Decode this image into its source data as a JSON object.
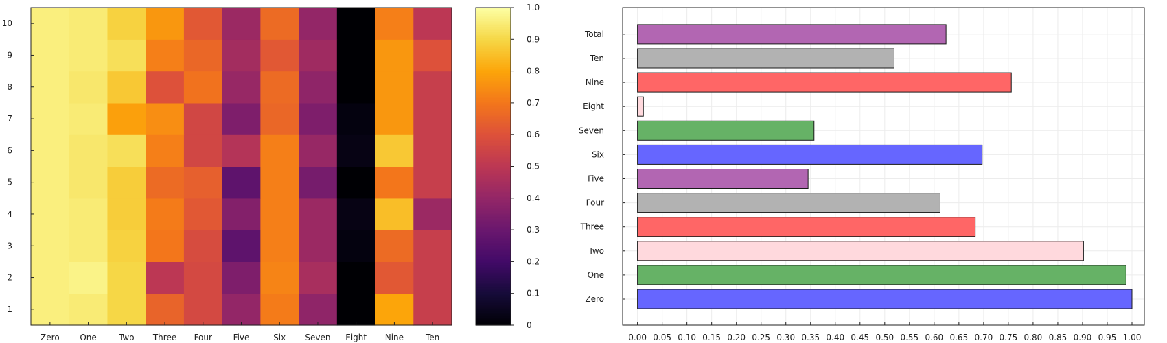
{
  "chart_data": [
    {
      "type": "heatmap",
      "title": "",
      "xlabel": "",
      "ylabel": "",
      "x_categories": [
        "Zero",
        "One",
        "Two",
        "Three",
        "Four",
        "Five",
        "Six",
        "Seven",
        "Eight",
        "Nine",
        "Ten"
      ],
      "y_categories": [
        "1",
        "2",
        "3",
        "4",
        "5",
        "6",
        "7",
        "8",
        "9",
        "10"
      ],
      "values": [
        [
          0.96,
          0.95,
          0.9,
          0.65,
          0.57,
          0.4,
          0.71,
          0.39,
          0.0,
          0.8,
          0.53
        ],
        [
          0.96,
          0.97,
          0.9,
          0.5,
          0.57,
          0.35,
          0.73,
          0.45,
          0.0,
          0.62,
          0.53
        ],
        [
          0.96,
          0.95,
          0.89,
          0.7,
          0.58,
          0.27,
          0.72,
          0.42,
          0.02,
          0.67,
          0.53
        ],
        [
          0.96,
          0.95,
          0.88,
          0.71,
          0.62,
          0.36,
          0.72,
          0.42,
          0.03,
          0.85,
          0.42
        ],
        [
          0.96,
          0.94,
          0.88,
          0.67,
          0.64,
          0.27,
          0.72,
          0.33,
          0.0,
          0.7,
          0.53
        ],
        [
          0.96,
          0.94,
          0.92,
          0.72,
          0.56,
          0.48,
          0.72,
          0.41,
          0.03,
          0.87,
          0.53
        ],
        [
          0.96,
          0.95,
          0.79,
          0.75,
          0.56,
          0.35,
          0.66,
          0.35,
          0.02,
          0.77,
          0.53
        ],
        [
          0.96,
          0.94,
          0.87,
          0.6,
          0.69,
          0.41,
          0.67,
          0.39,
          0.0,
          0.77,
          0.53
        ],
        [
          0.96,
          0.95,
          0.92,
          0.72,
          0.66,
          0.44,
          0.62,
          0.43,
          0.0,
          0.77,
          0.6
        ],
        [
          0.96,
          0.95,
          0.89,
          0.77,
          0.62,
          0.42,
          0.67,
          0.4,
          0.0,
          0.72,
          0.5
        ]
      ],
      "colorbar": {
        "colormap": "inferno",
        "range": [
          0,
          1
        ],
        "ticks": [
          "0",
          "0.1",
          "0.2",
          "0.3",
          "0.4",
          "0.5",
          "0.6",
          "0.7",
          "0.8",
          "0.9",
          "1.0"
        ]
      },
      "grid": false
    },
    {
      "type": "bar",
      "orientation": "horizontal",
      "title": "",
      "xlabel": "",
      "ylabel": "",
      "categories": [
        "Zero",
        "One",
        "Two",
        "Three",
        "Four",
        "Five",
        "Six",
        "Seven",
        "Eight",
        "Nine",
        "Ten",
        "Total"
      ],
      "values": [
        1.0,
        0.988,
        0.902,
        0.683,
        0.612,
        0.345,
        0.697,
        0.357,
        0.012,
        0.756,
        0.519,
        0.624
      ],
      "colors": [
        "#6666ff",
        "#66b266",
        "#ffd9dd",
        "#ff6666",
        "#b2b2b2",
        "#b266b2",
        "#6666ff",
        "#66b266",
        "#ffd9dd",
        "#ff6666",
        "#b2b2b2",
        "#b266b2"
      ],
      "xlim": [
        -0.03,
        1.025
      ],
      "xticks": [
        "0.00",
        "0.05",
        "0.10",
        "0.15",
        "0.20",
        "0.25",
        "0.30",
        "0.35",
        "0.40",
        "0.45",
        "0.50",
        "0.55",
        "0.60",
        "0.65",
        "0.70",
        "0.75",
        "0.80",
        "0.85",
        "0.90",
        "0.95",
        "1.00"
      ],
      "grid": true
    }
  ]
}
